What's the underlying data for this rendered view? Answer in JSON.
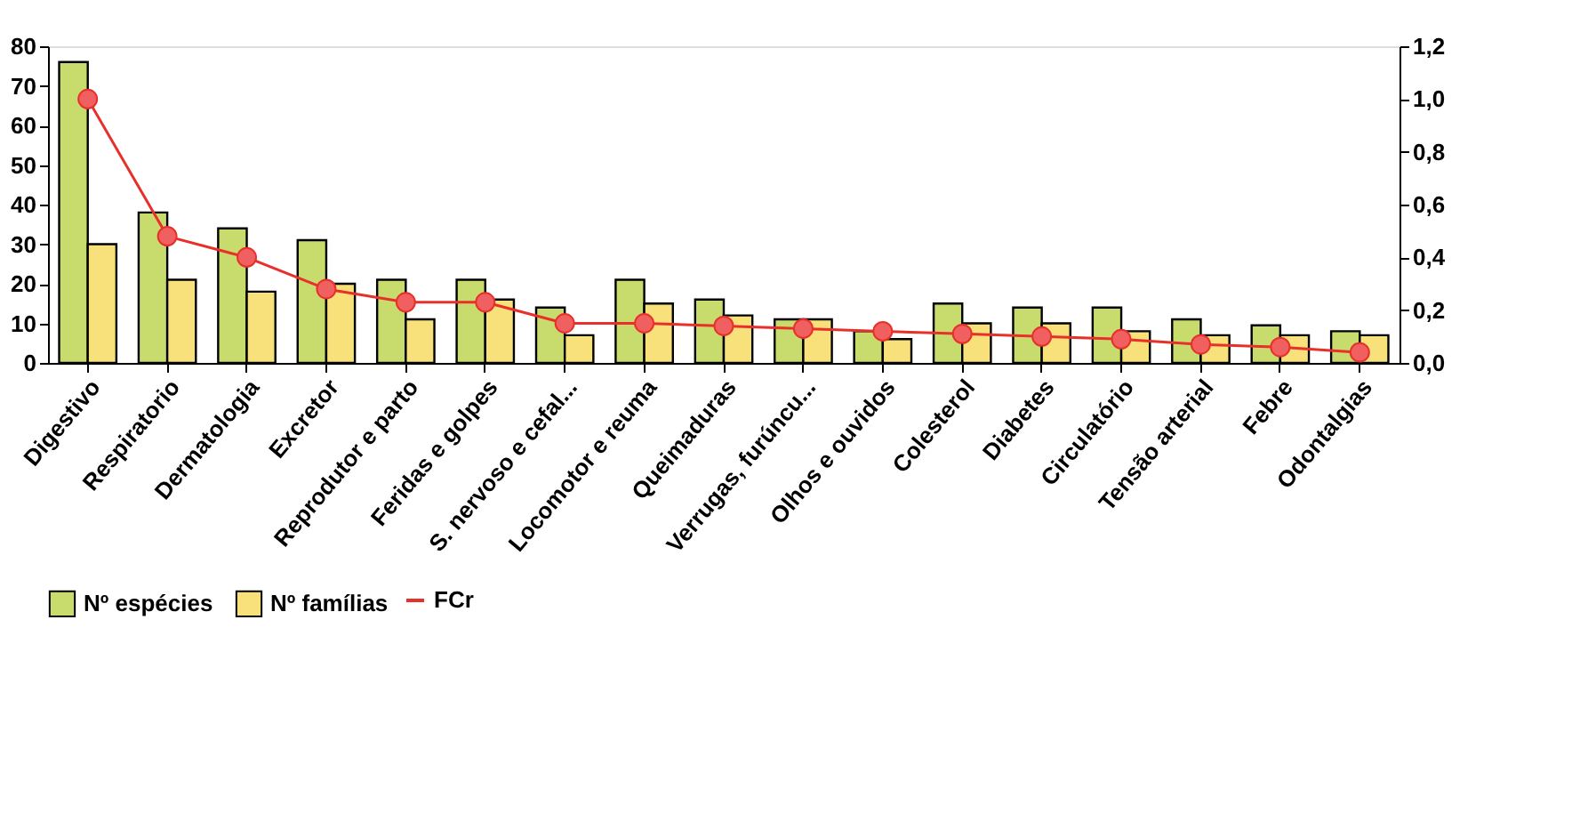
{
  "chart_data": {
    "type": "bar",
    "categories": [
      "Digestivo",
      "Respiratorio",
      "Dermatologia",
      "Excretor",
      "Reprodutor e parto",
      "Feridas e golpes",
      "S. nervoso e cefal...",
      "Locomotor e reuma",
      "Queimaduras",
      "Verrugas, furúncu...",
      "Olhos e ouvidos",
      "Colesterol",
      "Diabetes",
      "Circulatório",
      "Tensão arterial",
      "Febre",
      "Odontalgias"
    ],
    "series": [
      {
        "name": "Nº espécies",
        "color": "#c8dc6e",
        "values": [
          76,
          38,
          34,
          31,
          21,
          21,
          14,
          21,
          16,
          11,
          8,
          15,
          14,
          14,
          11,
          9.5,
          8
        ]
      },
      {
        "name": "Nº famílias",
        "color": "#f8e07a",
        "values": [
          30,
          21,
          18,
          20,
          11,
          16,
          7,
          15,
          12,
          11,
          6,
          10,
          10,
          8,
          7,
          7,
          7
        ]
      },
      {
        "name": "FCr",
        "type": "line",
        "axis": "y2",
        "color": "#e8302a",
        "marker": "circle",
        "values": [
          1.0,
          0.48,
          0.4,
          0.28,
          0.23,
          0.23,
          0.15,
          0.15,
          0.14,
          0.13,
          0.12,
          0.11,
          0.1,
          0.09,
          0.07,
          0.06,
          0.04
        ]
      }
    ],
    "ylim": [
      0,
      80
    ],
    "yticks": [
      0,
      10,
      20,
      30,
      40,
      50,
      60,
      70,
      80
    ],
    "y2lim": [
      0,
      1.2
    ],
    "y2ticks": [
      {
        "value": 0,
        "label": "0,0"
      },
      {
        "value": 0.2,
        "label": "0,2"
      },
      {
        "value": 0.4,
        "label": "0,4"
      },
      {
        "value": 0.6,
        "label": "0,6"
      },
      {
        "value": 0.8,
        "label": "0,8"
      },
      {
        "value": 1.0,
        "label": "1,0"
      },
      {
        "value": 1.2,
        "label": "1,2"
      }
    ],
    "grid": false,
    "legend": "bottom"
  }
}
